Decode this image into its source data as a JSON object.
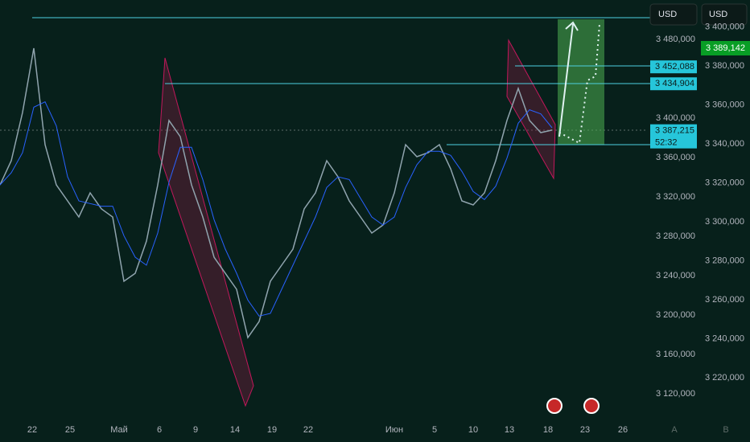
{
  "toolbar": {
    "left_currency": "USD",
    "right_currency": "USD"
  },
  "left_axis": {
    "range": [
      3100,
      3500
    ],
    "ticks": [
      {
        "value": 3480,
        "label": "3 480,000"
      },
      {
        "value": 3400,
        "label": "3 400,000"
      },
      {
        "value": 3360,
        "label": "3 360,000"
      },
      {
        "value": 3320,
        "label": "3 320,000"
      },
      {
        "value": 3280,
        "label": "3 280,000"
      },
      {
        "value": 3240,
        "label": "3 240,000"
      },
      {
        "value": 3200,
        "label": "3 200,000"
      },
      {
        "value": 3160,
        "label": "3 160,000"
      },
      {
        "value": 3120,
        "label": "3 120,000"
      }
    ],
    "tags": [
      {
        "value": 3452.088,
        "label": "3 452,088"
      },
      {
        "value": 3434.904,
        "label": "3 434,904"
      },
      {
        "value": 3387.215,
        "label": "3 387,215"
      }
    ],
    "countdown": "52:32"
  },
  "right_axis": {
    "ticks": [
      {
        "value": 3400,
        "label": "3 400,000"
      },
      {
        "value": 3380,
        "label": "3 380,000"
      },
      {
        "value": 3360,
        "label": "3 360,000"
      },
      {
        "value": 3340,
        "label": "3 340,000"
      },
      {
        "value": 3320,
        "label": "3 320,000"
      },
      {
        "value": 3300,
        "label": "3 300,000"
      },
      {
        "value": 3280,
        "label": "3 280,000"
      },
      {
        "value": 3260,
        "label": "3 260,000"
      },
      {
        "value": 3240,
        "label": "3 240,000"
      },
      {
        "value": 3220,
        "label": "3 220,000"
      }
    ],
    "tag": "3 389,142"
  },
  "x_axis": {
    "labels": [
      "22",
      "25",
      "Май",
      "6",
      "9",
      "14",
      "19",
      "22",
      "Июн",
      "5",
      "10",
      "13",
      "18",
      "23",
      "26"
    ],
    "scale_buttons": [
      "A",
      "B"
    ]
  },
  "price": [
    3332.2,
    3356.7,
    3405.7,
    3471.0,
    3373.1,
    3332.2,
    3315.9,
    3299.6,
    3324.1,
    3307.8,
    3299.6,
    3234.3,
    3242.4,
    3275.1,
    3332.2,
    3397.6,
    3381.2,
    3332.2,
    3299.6,
    3258.8,
    3242.4,
    3226.1,
    3177.1,
    3193.5,
    3234.3,
    3250.6,
    3266.9,
    3307.8,
    3324.1,
    3356.7,
    3340.4,
    3315.9,
    3299.6,
    3283.3,
    3291.4,
    3324.1,
    3373.1,
    3360.8,
    3364.9,
    3373.1,
    3348.6,
    3315.9,
    3311.8,
    3324.1,
    3356.7,
    3397.6,
    3430.2,
    3397.6,
    3385.3,
    3387.8
  ]
}
